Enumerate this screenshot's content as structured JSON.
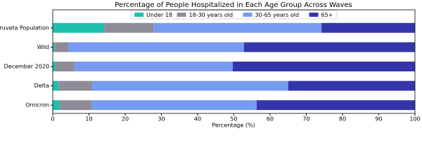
{
  "chart_data": {
    "type": "stacked_barh",
    "title": "Percentage of People Hospitalized in Each Age Group Across Waves",
    "xlabel": "Percentage (%)",
    "categories": [
      "Truveta Population",
      "Wild",
      "December 2020",
      "Delta",
      "Omicron"
    ],
    "series": [
      {
        "name": "Under 18",
        "color": "#1fbfad",
        "values": [
          14.2,
          0.5,
          0.8,
          1.6,
          1.9
        ]
      },
      {
        "name": "18-30 years old",
        "color": "#8f8b97",
        "values": [
          13.6,
          3.8,
          5.2,
          9.3,
          8.8
        ]
      },
      {
        "name": "30-65 years old",
        "color": "#779bf0",
        "values": [
          46.4,
          48.5,
          43.7,
          54.1,
          45.6
        ]
      },
      {
        "name": "65+",
        "color": "#3535ab",
        "values": [
          25.8,
          47.2,
          50.3,
          35.0,
          43.7
        ]
      }
    ],
    "xlim": [
      0,
      100
    ],
    "xticks": [
      0,
      10,
      20,
      30,
      40,
      50,
      60,
      70,
      80,
      90,
      100
    ],
    "legend": "upper center"
  }
}
